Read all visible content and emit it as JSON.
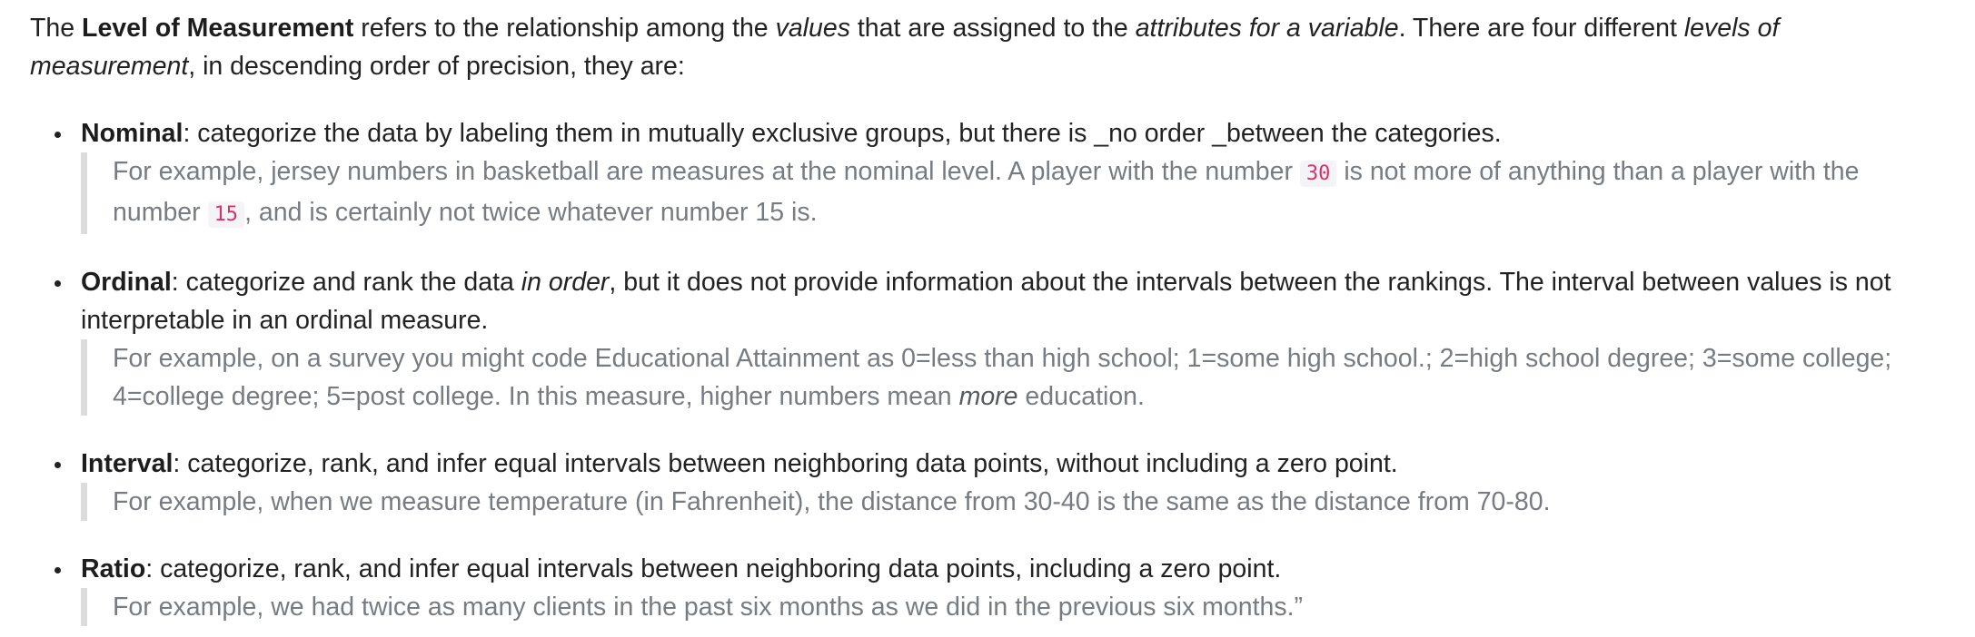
{
  "intro": {
    "t1": "The ",
    "term": "Level of Measurement",
    "t2": " refers to the relationship among the ",
    "values_em": "values",
    "t3": " that are assigned to the ",
    "attributes_em": "attributes for a variable",
    "t4": ". There are four different ",
    "levels_em": "levels of measurement",
    "t5": ", in descending order of precision, they are:"
  },
  "levels": [
    {
      "name": "Nominal",
      "description": ": categorize the data by labeling them in mutually exclusive groups, but there is _no order _between the categories.",
      "example": {
        "t1": "For example, jersey numbers in basketball are measures at the nominal level. A player with the number ",
        "code1": "30",
        "t2": " is not more of anything than a player with the number ",
        "code2": "15",
        "t3": ", and is certainly not twice whatever number 15 is."
      }
    },
    {
      "name": "Ordinal",
      "d1": ": categorize and rank the data ",
      "d_em": "in order",
      "d2": ", but it does not provide information about the intervals between the rankings. The interval between values is not interpretable in an ordinal measure.",
      "example": {
        "t1": "For example, on a survey you might code Educational Attainment as 0=less than high school; 1=some high school.; 2=high school degree; 3=some college; 4=college degree; 5=post college. In this measure, higher numbers mean ",
        "em": "more",
        "t2": " education."
      }
    },
    {
      "name": "Interval",
      "description": ": categorize, rank, and infer equal intervals between neighboring data points, without including a zero point.",
      "example": "For example, when we measure temperature (in Fahrenheit), the distance from 30-40 is the same as the distance from 70-80."
    },
    {
      "name": "Ratio",
      "description": ": categorize, rank, and infer equal intervals between neighboring data points, including a zero point.",
      "example": "For example, we had twice as many clients in the past six months as we did in the previous six months.”"
    }
  ]
}
